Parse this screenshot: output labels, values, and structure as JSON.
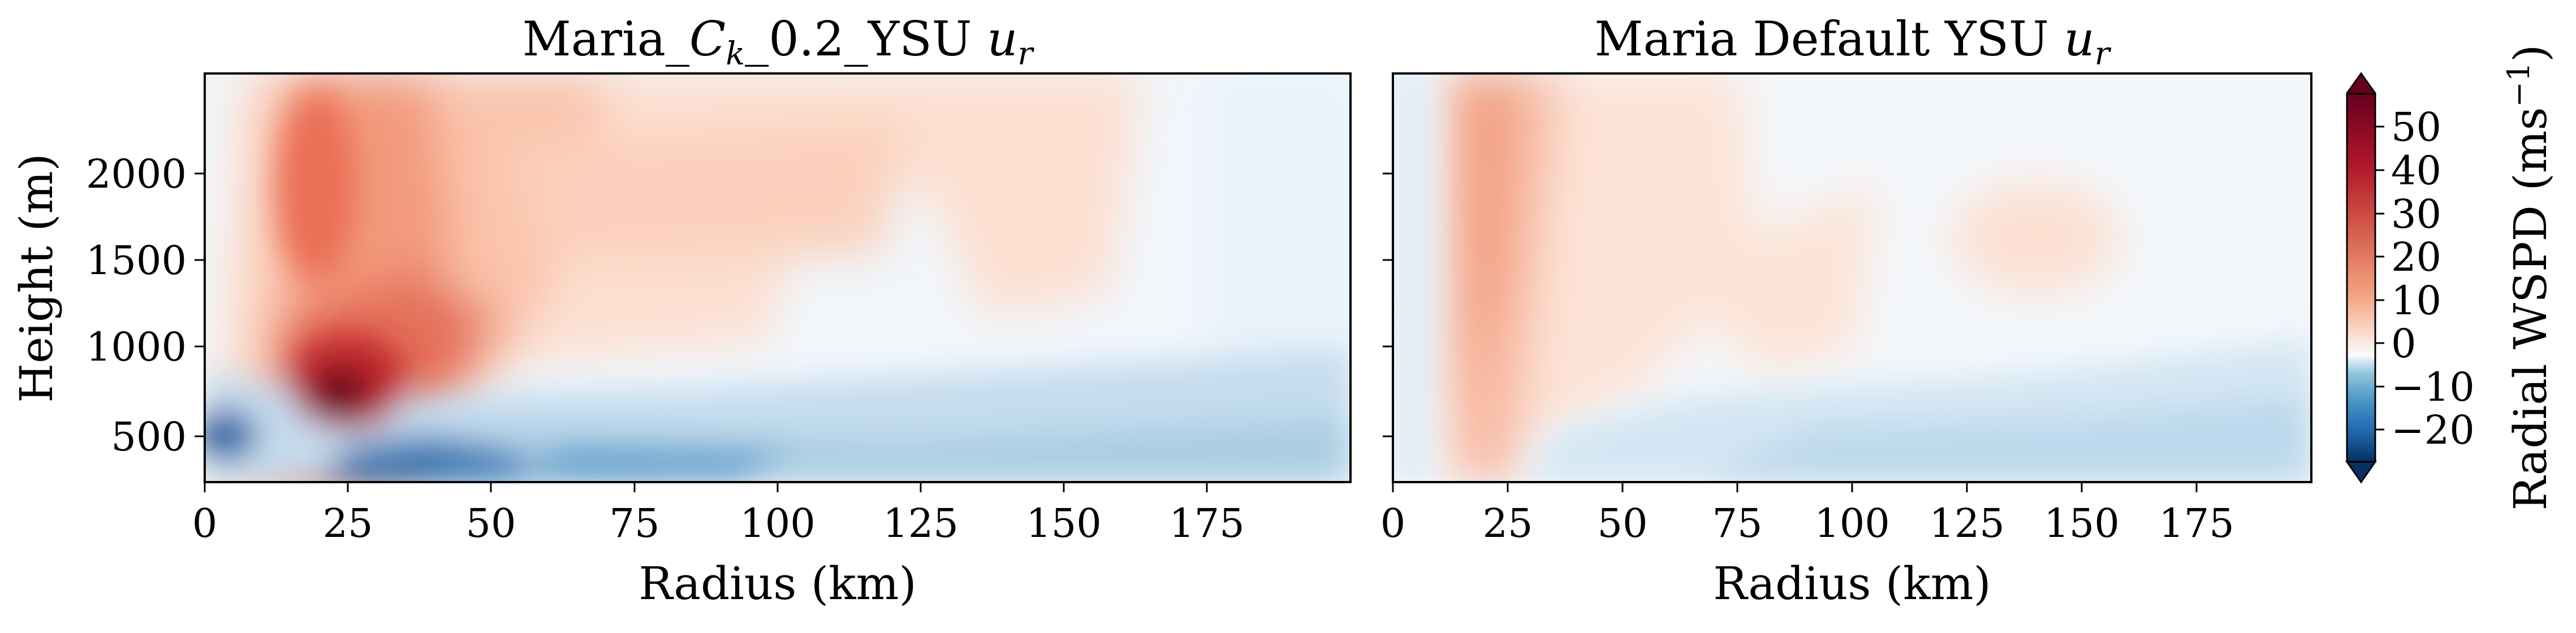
{
  "chart_data": [
    {
      "type": "heatmap",
      "title": "Maria_C_k_0.2_YSU u_r",
      "title_parts": {
        "prefix": "Maria_",
        "ck_main": "C",
        "ck_sub": "k",
        "middle": "_0.2_YSU ",
        "ur_main": "u",
        "ur_sub": "r"
      },
      "xlabel": "Radius (km)",
      "ylabel": "Height (m)",
      "xlim": [
        0,
        200
      ],
      "ylim": [
        250,
        2500
      ],
      "xticks": [
        "0",
        "25",
        "50",
        "75",
        "100",
        "125",
        "150",
        "175"
      ],
      "yticks": [
        "500",
        "1000",
        "1500",
        "2000"
      ],
      "field_features": [
        {
          "desc": "strong inflow core near surface",
          "radius_km": [
            30,
            190
          ],
          "height_m": [
            250,
            500
          ],
          "value": -20
        },
        {
          "desc": "outflow maximum",
          "radius_km": [
            15,
            30
          ],
          "height_m": [
            600,
            950
          ],
          "value": 50
        },
        {
          "desc": "outflow column",
          "radius_km": [
            5,
            40
          ],
          "height_m": [
            250,
            2500
          ],
          "value": 30
        },
        {
          "desc": "broad weak outflow",
          "radius_km": [
            40,
            160
          ],
          "height_m": [
            1100,
            2500
          ],
          "value": 15
        }
      ]
    },
    {
      "type": "heatmap",
      "title": "Maria Default YSU u_r",
      "title_parts": {
        "prefix": "Maria Default YSU ",
        "ur_main": "u",
        "ur_sub": "r"
      },
      "xlabel": "Radius (km)",
      "ylabel": "",
      "xlim": [
        0,
        160
      ],
      "ylim": [
        250,
        2500
      ],
      "xticks": [
        "0",
        "25",
        "50",
        "75",
        "100",
        "125",
        "150",
        "175"
      ],
      "yticks": [],
      "field_features": [
        {
          "desc": "outflow column",
          "radius_km": [
            10,
            30
          ],
          "height_m": [
            300,
            2500
          ],
          "value": 25
        },
        {
          "desc": "weak outflow region",
          "radius_km": [
            30,
            75
          ],
          "height_m": [
            900,
            2500
          ],
          "value": 12
        },
        {
          "desc": "isolated outflow blob",
          "radius_km": [
            125,
            160
          ],
          "height_m": [
            1400,
            1900
          ],
          "value": 12
        },
        {
          "desc": "weak inflow near surface",
          "radius_km": [
            20,
            160
          ],
          "height_m": [
            250,
            900
          ],
          "value": -8
        }
      ]
    }
  ],
  "colorbar": {
    "label": "Radial WSPD",
    "unit_open": "(ms",
    "unit_exp": "−1",
    "unit_close": ")",
    "ticks": [
      "50",
      "40",
      "30",
      "20",
      "10",
      "0",
      "−10",
      "−20"
    ],
    "range": [
      -25,
      60
    ],
    "colormap": "RdBu_r",
    "colors": [
      "#053061",
      "#2166ac",
      "#4393c3",
      "#92c5de",
      "#d1e5f0",
      "#f7f7f7",
      "#fddbc7",
      "#f4a582",
      "#d6604d",
      "#b2182b",
      "#67001f"
    ]
  }
}
